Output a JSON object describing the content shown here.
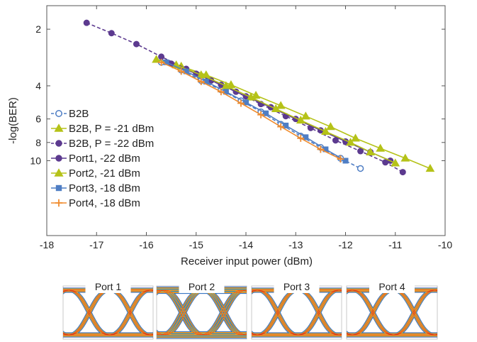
{
  "chart_data": {
    "type": "line",
    "xlabel": "Receiver input power (dBm)",
    "ylabel": "-log(BER)",
    "xlim": [
      -18,
      -10
    ],
    "ylim": [
      1.5,
      25
    ],
    "y_scale": "log-log (BER)",
    "grid": false,
    "legend_position": "left",
    "x_ticks": [
      -18,
      -17,
      -16,
      -15,
      -14,
      -13,
      -12,
      -11,
      -10
    ],
    "x_tick_labels": [
      "-18",
      "-17",
      "-16",
      "-15",
      "-14",
      "-13",
      "-12",
      "-11",
      "-10"
    ],
    "y_ticks": [
      2,
      4,
      6,
      8,
      10
    ],
    "y_tick_labels": [
      "2",
      "4",
      "6",
      "8",
      "10"
    ],
    "series": [
      {
        "name": "B2B",
        "color": "#4f7ec4",
        "marker": "open-circle",
        "dash": "dashed",
        "x": [
          -15.7,
          -15.3,
          -14.9,
          -14.5,
          -14.1,
          -13.7,
          -13.3,
          -12.9,
          -12.5,
          -12.1,
          -11.7
        ],
        "y": [
          3.0,
          3.3,
          3.75,
          4.2,
          4.8,
          5.5,
          6.4,
          7.4,
          8.5,
          9.7,
          11.0
        ]
      },
      {
        "name": "B2B, P = -21 dBm",
        "color": "#b5c218",
        "marker": "triangle",
        "dash": "solid",
        "x": [
          -15.8,
          -15.3,
          -14.8,
          -14.3,
          -13.8,
          -13.3,
          -12.8,
          -12.3,
          -11.8,
          -11.3,
          -10.8,
          -10.3
        ],
        "y": [
          2.9,
          3.15,
          3.5,
          3.95,
          4.5,
          5.1,
          5.8,
          6.6,
          7.6,
          8.6,
          9.7,
          11.0
        ]
      },
      {
        "name": "B2B, P = -22 dBm",
        "color": "#5c3a8f",
        "marker": "filled-circle",
        "dash": "dashed",
        "x": [
          -17.2,
          -16.7,
          -16.2,
          -15.7,
          -15.2,
          -14.7,
          -14.2,
          -13.7,
          -13.2,
          -12.7,
          -12.2,
          -11.7,
          -11.2,
          -10.85
        ],
        "y": [
          1.85,
          2.1,
          2.4,
          2.8,
          3.25,
          3.75,
          4.3,
          5.0,
          5.8,
          6.7,
          7.8,
          8.9,
          10.2,
          11.5
        ]
      },
      {
        "name": "Port1, -22 dBm",
        "color": "#5c3a8f",
        "marker": "filled-circle",
        "dash": "solid",
        "x": [
          -15.5,
          -15.0,
          -14.5,
          -14.0,
          -13.5,
          -13.0,
          -12.5,
          -12.0,
          -11.5,
          -11.1
        ],
        "y": [
          3.05,
          3.45,
          3.95,
          4.55,
          5.2,
          6.0,
          6.9,
          7.9,
          9.0,
          10.0
        ]
      },
      {
        "name": "Port2, -21 dBm",
        "color": "#b5c218",
        "marker": "triangle",
        "dash": "solid",
        "x": [
          -15.4,
          -14.9,
          -14.4,
          -13.9,
          -13.4,
          -12.9,
          -12.4,
          -11.9,
          -11.5,
          -11.0
        ],
        "y": [
          3.1,
          3.5,
          4.0,
          4.6,
          5.3,
          6.1,
          7.0,
          8.0,
          9.0,
          10.3
        ]
      },
      {
        "name": "Port3, -18 dBm",
        "color": "#4f7ec4",
        "marker": "filled-square",
        "dash": "solid",
        "x": [
          -15.6,
          -15.2,
          -14.8,
          -14.4,
          -14.0,
          -13.6,
          -13.2,
          -12.8,
          -12.4,
          -12.0
        ],
        "y": [
          3.0,
          3.35,
          3.8,
          4.3,
          4.9,
          5.6,
          6.5,
          7.5,
          8.7,
          10.0
        ]
      },
      {
        "name": "Port4, -18 dBm",
        "color": "#f08c2e",
        "marker": "plus",
        "dash": "solid",
        "x": [
          -15.7,
          -15.3,
          -14.9,
          -14.5,
          -14.1,
          -13.7,
          -13.3,
          -12.9,
          -12.5,
          -12.1
        ],
        "y": [
          3.0,
          3.35,
          3.8,
          4.3,
          4.95,
          5.7,
          6.6,
          7.6,
          8.7,
          9.8
        ]
      }
    ]
  },
  "eye_diagrams": {
    "labels": [
      "Port 1",
      "Port 2",
      "Port 3",
      "Port 4"
    ],
    "colors": [
      "#2233aa",
      "#1aa6d8",
      "#f0e02a",
      "#f08c2e",
      "#d62718"
    ]
  }
}
